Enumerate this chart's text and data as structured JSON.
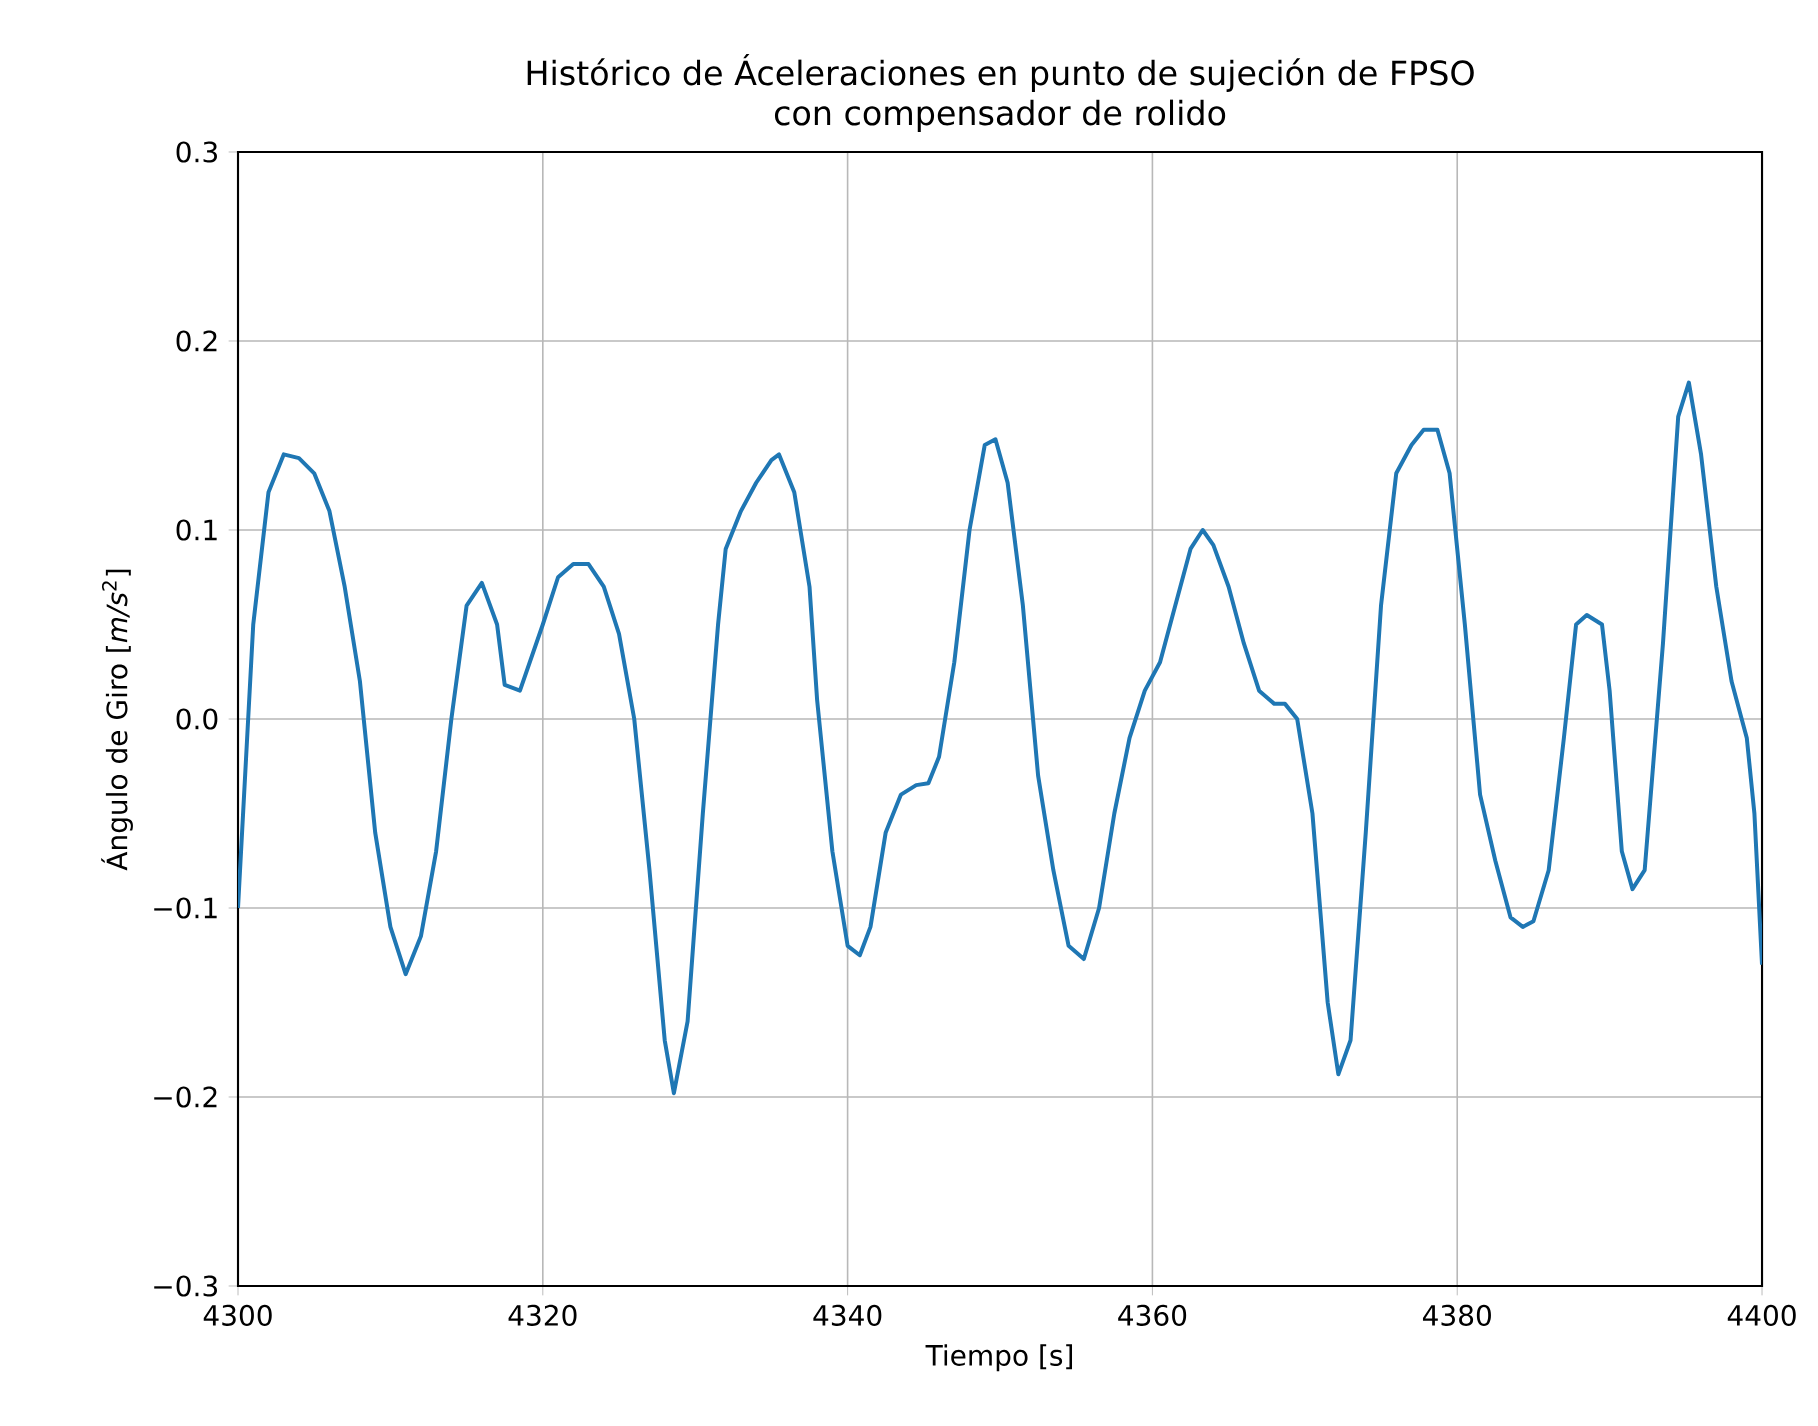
{
  "chart_data": {
    "type": "line",
    "title": "Histórico de Áceleraciones en punto de sujeción de FPSO\ncon compensador de rolido",
    "xlabel": "Tiempo [s]",
    "ylabel": "Ángulo de Giro [*m/s*$^{2}$]",
    "xlim": [
      4300,
      4400
    ],
    "ylim": [
      -0.3,
      0.3
    ],
    "xticks": [
      4300,
      4320,
      4340,
      4360,
      4380,
      4400
    ],
    "yticks": [
      {
        "value": -0.3,
        "label": "−0.3"
      },
      {
        "value": -0.2,
        "label": "−0.2"
      },
      {
        "value": -0.1,
        "label": "−0.1"
      },
      {
        "value": 0,
        "label": "0.0"
      },
      {
        "value": 0.1,
        "label": "0.1"
      },
      {
        "value": 0.2,
        "label": "0.2"
      },
      {
        "value": 0.3,
        "label": "0.3"
      }
    ],
    "grid": true,
    "marker": "none",
    "line_style": "solid",
    "series": [
      {
        "color": "#1f77b4",
        "x": [
          4300,
          4301,
          4302,
          4303,
          4304,
          4305,
          4306,
          4307,
          4308,
          4309,
          4310,
          4311,
          4312,
          4313,
          4314,
          4315,
          4316,
          4317,
          4317.5,
          4318.5,
          4320,
          4321,
          4322,
          4323,
          4324,
          4325,
          4326,
          4327,
          4328,
          4328.6,
          4329.5,
          4330.5,
          4331.5,
          4332,
          4333,
          4334,
          4335,
          4335.5,
          4336.5,
          4337.5,
          4338,
          4339,
          4340,
          4340.8,
          4341.5,
          4342.5,
          4343.5,
          4344.5,
          4345.3,
          4346,
          4347,
          4348,
          4349,
          4349.7,
          4350.5,
          4351.5,
          4352.5,
          4353.5,
          4354.5,
          4355.5,
          4356.5,
          4357.5,
          4358.5,
          4359.5,
          4360.5,
          4361.5,
          4362.5,
          4363.3,
          4364,
          4365,
          4366,
          4367,
          4368,
          4368.7,
          4369.5,
          4370.5,
          4371.5,
          4372.2,
          4373,
          4374,
          4375,
          4376,
          4377,
          4377.8,
          4378.7,
          4379.5,
          4380.5,
          4381.5,
          4382.5,
          4383.5,
          4384.3,
          4385,
          4386,
          4387,
          4387.8,
          4388.5,
          4389.5,
          4390,
          4390.8,
          4391.5,
          4392.3,
          4393.5,
          4394.5,
          4395.2,
          4396,
          4397,
          4398,
          4399,
          4399.5,
          4400
        ],
        "values": [
          -0.1,
          0.05,
          0.12,
          0.14,
          0.138,
          0.13,
          0.11,
          0.07,
          0.02,
          -0.06,
          -0.11,
          -0.135,
          -0.115,
          -0.07,
          0.0,
          0.06,
          0.072,
          0.05,
          0.018,
          0.015,
          0.05,
          0.075,
          0.082,
          0.082,
          0.07,
          0.045,
          0.0,
          -0.08,
          -0.17,
          -0.198,
          -0.16,
          -0.05,
          0.05,
          0.09,
          0.11,
          0.125,
          0.137,
          0.14,
          0.12,
          0.07,
          0.01,
          -0.07,
          -0.12,
          -0.125,
          -0.11,
          -0.06,
          -0.04,
          -0.035,
          -0.034,
          -0.02,
          0.03,
          0.1,
          0.145,
          0.148,
          0.125,
          0.06,
          -0.03,
          -0.08,
          -0.12,
          -0.127,
          -0.1,
          -0.05,
          -0.01,
          0.015,
          0.03,
          0.06,
          0.09,
          0.1,
          0.092,
          0.07,
          0.04,
          0.015,
          0.008,
          0.008,
          0.0,
          -0.05,
          -0.15,
          -0.188,
          -0.17,
          -0.06,
          0.06,
          0.13,
          0.145,
          0.153,
          0.153,
          0.13,
          0.05,
          -0.04,
          -0.075,
          -0.105,
          -0.11,
          -0.107,
          -0.08,
          -0.01,
          0.05,
          0.055,
          0.05,
          0.015,
          -0.07,
          -0.09,
          -0.08,
          0.04,
          0.16,
          0.178,
          0.14,
          0.07,
          0.02,
          -0.01,
          -0.05,
          -0.13
        ]
      }
    ]
  }
}
